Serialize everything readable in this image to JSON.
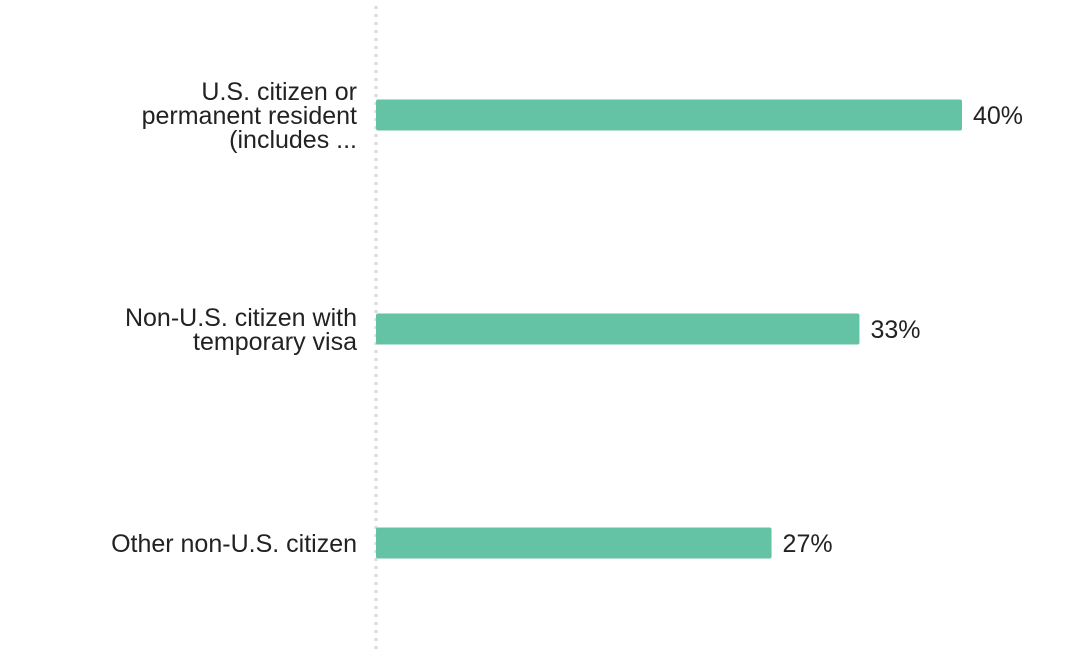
{
  "chart_data": {
    "type": "bar",
    "orientation": "horizontal",
    "categories": [
      [
        "U.S. citizen or",
        "permanent resident",
        "(includes ..."
      ],
      [
        "Non-U.S. citizen with",
        "temporary visa"
      ],
      [
        "Other non-U.S. citizen"
      ]
    ],
    "values": [
      40,
      33,
      27
    ],
    "value_labels": [
      "40%",
      "33%",
      "27%"
    ],
    "xlim": [
      0,
      40
    ],
    "grid": false,
    "legend": "none",
    "title": "",
    "xlabel": "",
    "ylabel": "",
    "colors": {
      "bar": "#64c3a5",
      "axis": "#d9d9d9",
      "text": "#222222"
    }
  }
}
